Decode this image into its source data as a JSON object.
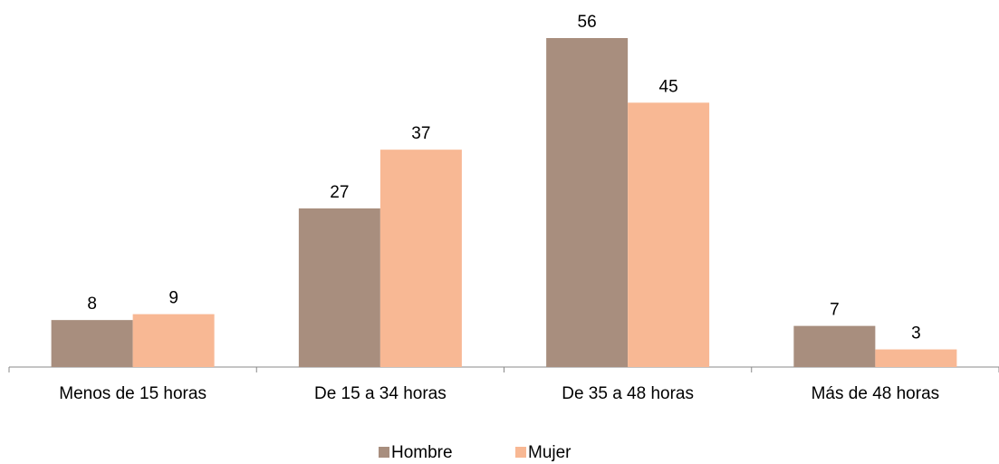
{
  "chart_data": {
    "type": "bar",
    "categories": [
      "Menos de 15 horas",
      "De 15 a 34 horas",
      "De 35 a 48 horas",
      "Más de 48 horas"
    ],
    "series": [
      {
        "name": "Hombre",
        "color": "#a88e7e",
        "values": [
          8,
          27,
          56,
          7
        ]
      },
      {
        "name": "Mujer",
        "color": "#f8b894",
        "values": [
          9,
          37,
          45,
          3
        ]
      }
    ],
    "legend": "bottom"
  }
}
